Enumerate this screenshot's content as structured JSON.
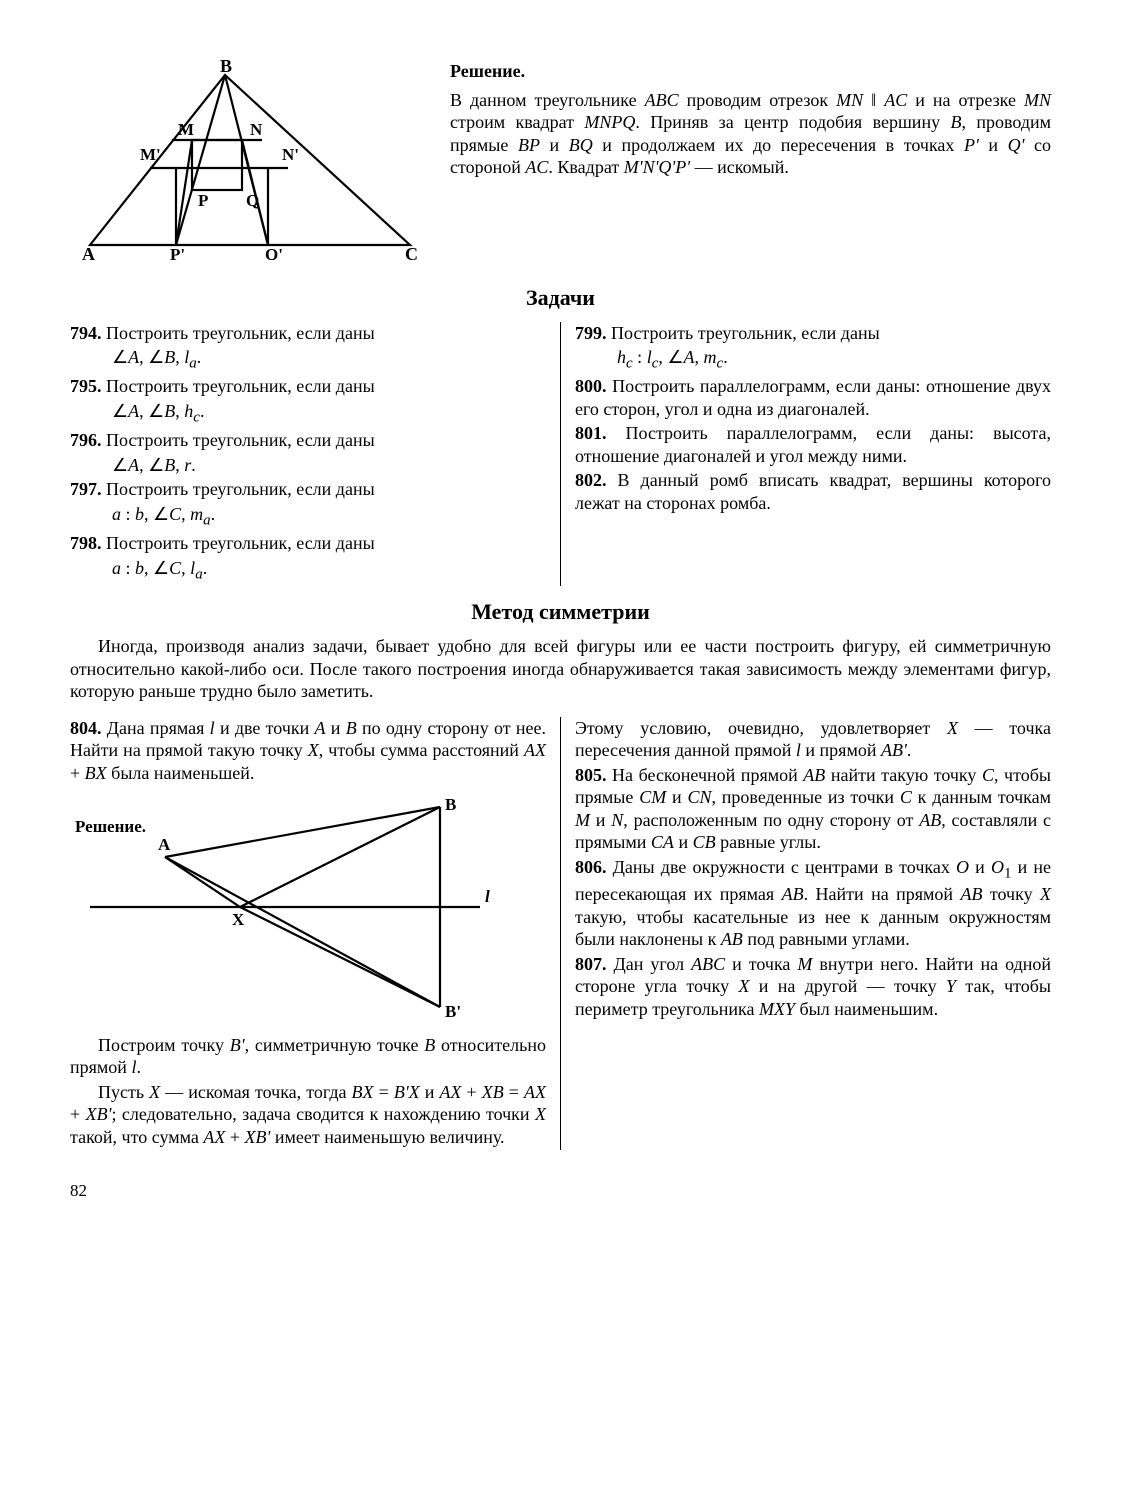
{
  "figure1": {
    "labels": {
      "B": "B",
      "M": "M",
      "N": "N",
      "Mp": "M'",
      "Np": "N'",
      "P": "P",
      "Q": "Q",
      "A": "A",
      "C": "C",
      "Pp": "P'",
      "Qp": "Q'"
    }
  },
  "figure2": {
    "labels": {
      "A": "A",
      "B": "B",
      "Bp": "B'",
      "X": "X",
      "l": "l"
    },
    "solution_label": "Решение."
  },
  "solution_title": "Решение.",
  "solution_text": "В данном треугольнике <em class='m'>ABC</em> проводим отрезок <em class='m'>MN</em> ‖ <em class='m'>AC</em> и на отрезке <em class='m'>MN</em> строим квадрат <em class='m'>MNPQ</em>. Приняв за центр подобия вершину <em class='m'>B</em>, проводим прямые <em class='m'>BP</em> и <em class='m'>BQ</em> и продолжаем их до пересечения в точках <em class='m'>P'</em> и <em class='m'>Q'</em> со стороной <em class='m'>AC</em>. Квадрат <em class='m'>M'N'Q'P'</em> — искомый.",
  "tasks_title": "Задачи",
  "problems_left": [
    {
      "n": "794.",
      "t": "Построить треугольник, если даны",
      "g": "∠<em class='m'>A</em>,  ∠<em class='m'>B</em>,  <em class='m'>l<sub>a</sub></em>."
    },
    {
      "n": "795.",
      "t": "Построить треугольник, если даны",
      "g": "∠<em class='m'>A</em>,  ∠<em class='m'>B</em>,  <em class='m'>h<sub>c</sub></em>."
    },
    {
      "n": "796.",
      "t": "Построить треугольник, если даны",
      "g": "∠<em class='m'>A</em>,  ∠<em class='m'>B</em>,  <em class='m'>r</em>."
    },
    {
      "n": "797.",
      "t": "Построить треугольник, если даны",
      "g": "<em class='m'>a</em> : <em class='m'>b</em>,  ∠<em class='m'>C</em>,  <em class='m'>m<sub>a</sub></em>."
    },
    {
      "n": "798.",
      "t": "Построить треугольник, если даны",
      "g": "<em class='m'>a</em> : <em class='m'>b</em>,  ∠<em class='m'>C</em>,  <em class='m'>l<sub>a</sub></em>."
    }
  ],
  "problems_right": [
    {
      "n": "799.",
      "t": "Построить треугольник, если даны",
      "g": "<em class='m'>h<sub>c</sub></em> : <em class='m'>l<sub>c</sub></em>,  ∠<em class='m'>A</em>,  <em class='m'>m<sub>c</sub></em>."
    },
    {
      "n": "800.",
      "t": "Построить параллелограмм, если даны: отношение двух его сторон, угол и одна из диагоналей.",
      "g": ""
    },
    {
      "n": "801.",
      "t": "Построить параллелограмм, если даны: высота, отношение диагоналей и угол между ними.",
      "g": ""
    },
    {
      "n": "802.",
      "t": "В данный ромб вписать квадрат, вершины которого лежат на сторонах ромба.",
      "g": ""
    }
  ],
  "symmetry_title": "Метод симметрии",
  "symmetry_intro": "Иногда, производя анализ задачи, бывает удобно для всей фигуры или ее части построить фигуру, ей симметричную относительно какой-либо оси. После такого построения иногда обнаруживается такая зависимость между элементами фигур, которую раньше трудно было заметить.",
  "p804": {
    "n": "804.",
    "t": "Дана прямая <em class='m'>l</em> и две точки <em class='m'>A</em> и <em class='m'>B</em> по одну сторону от нее. Найти на прямой такую точку <em class='m'>X</em>, чтобы сумма расстояний <em class='m'>AX</em> + <em class='m'>BX</em> была наименьшей.",
    "after": "Построим точку <em class='m'>B'</em>, симметричную точке <em class='m'>B</em> относительно прямой <em class='m'>l</em>.",
    "after2": "Пусть <em class='m'>X</em> — искомая точка, тогда <em class='m'>BX</em> = <em class='m'>B'X</em> и <em class='m'>AX</em> + <em class='m'>XB</em> = <em class='m'>AX</em> + <em class='m'>XB'</em>; следовательно, задача сводится к нахождению точки <em class='m'>X</em> такой, что сумма <em class='m'>AX</em> + <em class='m'>XB'</em> имеет наименьшую величину."
  },
  "right_sym": [
    {
      "n": "",
      "t": "Этому условию, очевидно, удовлетворяет <em class='m'>X</em> — точка пересечения данной прямой <em class='m'>l</em> и прямой <em class='m'>AB'</em>."
    },
    {
      "n": "805.",
      "t": "На бесконечной прямой <em class='m'>AB</em> найти такую точку <em class='m'>C</em>, чтобы прямые <em class='m'>CM</em> и <em class='m'>CN</em>, проведенные из точки <em class='m'>C</em> к данным точкам <em class='m'>M</em> и <em class='m'>N</em>, расположенным по одну сторону от <em class='m'>AB</em>, составляли с прямыми <em class='m'>CA</em> и <em class='m'>CB</em> равные углы."
    },
    {
      "n": "806.",
      "t": "Даны две окружности с центрами в точках <em class='m'>O</em> и <em class='m'>O</em><sub>1</sub> и не пересекающая их прямая <em class='m'>AB</em>. Найти на прямой <em class='m'>AB</em> точку <em class='m'>X</em> такую, чтобы касательные из нее к данным окружностям были наклонены к <em class='m'>AB</em> под равными углами."
    },
    {
      "n": "807.",
      "t": "Дан угол <em class='m'>ABC</em> и точка <em class='m'>M</em> внутри него. Найти на одной стороне угла точку <em class='m'>X</em> и на другой — точку <em class='m'>Y</em> так, чтобы периметр треугольника <em class='m'>MXY</em> был наименьшим."
    }
  ],
  "page_number": "82"
}
